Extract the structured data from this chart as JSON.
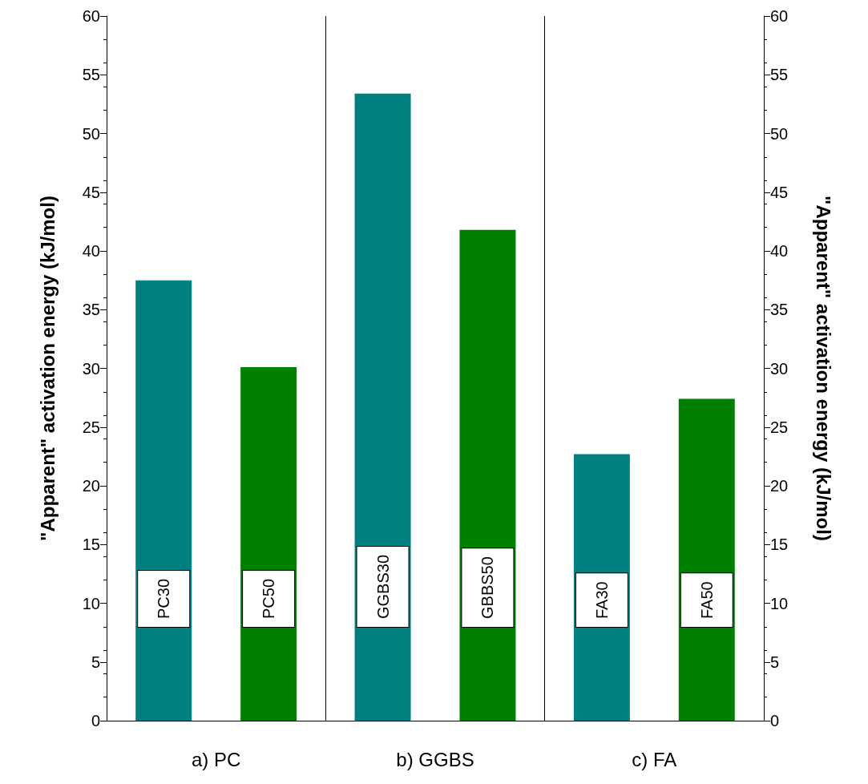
{
  "chart_data": {
    "type": "bar",
    "categories": [
      "a) PC",
      "b) GGBS",
      "c) FA"
    ],
    "series": [
      {
        "color": "#008080",
        "values": [
          37.5,
          53.4,
          22.7
        ],
        "value_labels": [
          "PC30",
          "GGBS30",
          "FA30"
        ]
      },
      {
        "color": "#008000",
        "values": [
          30.1,
          41.8,
          27.4
        ],
        "value_labels": [
          "PC50",
          "GBBS50",
          "FA50"
        ]
      }
    ],
    "ylabel": "\"Apparent\" activation energy (kJ/mol)",
    "y2label": "\"Apparent\" activation energy (kJ/mol)",
    "ylim": [
      0,
      60
    ],
    "yticks": [
      0,
      5,
      10,
      15,
      20,
      25,
      30,
      35,
      40,
      45,
      50,
      55,
      60
    ],
    "y2lim": [
      0,
      60
    ],
    "y2ticks": [
      0,
      5,
      10,
      15,
      20,
      25,
      30,
      35,
      40,
      45,
      50,
      55,
      60
    ],
    "grid": false
  }
}
